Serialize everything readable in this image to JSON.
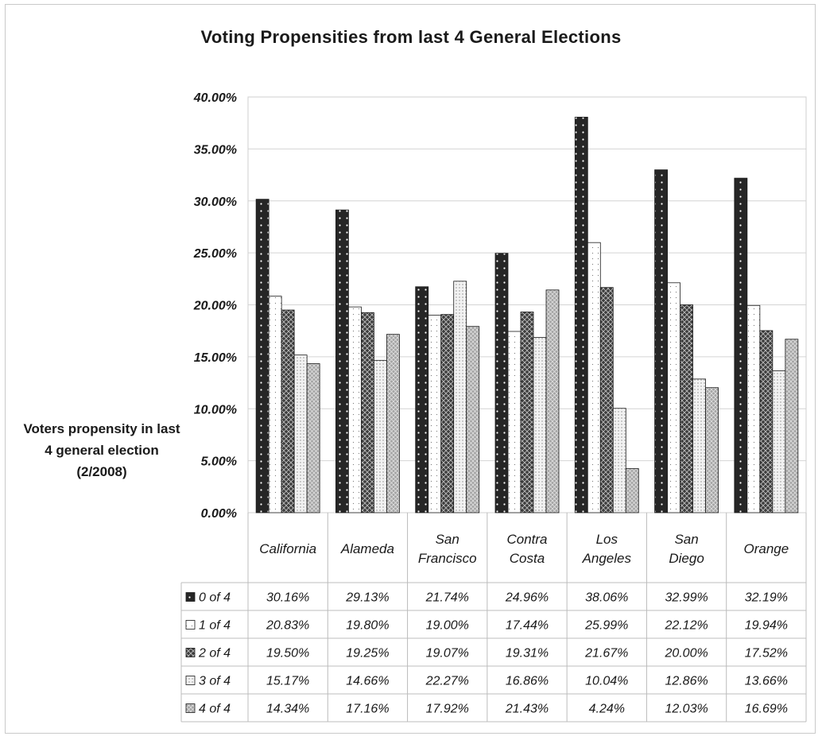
{
  "chart_data": {
    "type": "bar",
    "title": "Voting Propensities from last 4 General Elections",
    "ylabel": "Voters propensity in last 4 general election (2/2008)",
    "xlabel": "",
    "ylim": [
      0,
      40
    ],
    "yticks": [
      "0.00%",
      "5.00%",
      "10.00%",
      "15.00%",
      "20.00%",
      "25.00%",
      "30.00%",
      "35.00%",
      "40.00%"
    ],
    "grid": true,
    "legend": "data-table",
    "categories": [
      [
        "California"
      ],
      [
        "Alameda"
      ],
      [
        "San",
        "Francisco"
      ],
      [
        "Contra",
        "Costa"
      ],
      [
        "Los",
        "Angeles"
      ],
      [
        "San",
        "Diego"
      ],
      [
        "Orange"
      ]
    ],
    "series": [
      {
        "name": "0 of 4",
        "values": [
          30.16,
          29.13,
          21.74,
          24.96,
          38.06,
          32.99,
          32.19
        ],
        "labels": [
          "30.16%",
          "29.13%",
          "21.74%",
          "24.96%",
          "38.06%",
          "32.99%",
          "32.19%"
        ],
        "color": "#2b2b2b"
      },
      {
        "name": "1 of 4",
        "values": [
          20.83,
          19.8,
          19.0,
          17.44,
          25.99,
          22.12,
          19.94
        ],
        "labels": [
          "20.83%",
          "19.80%",
          "19.00%",
          "17.44%",
          "25.99%",
          "22.12%",
          "19.94%"
        ],
        "color": "#ffffff"
      },
      {
        "name": "2 of 4",
        "values": [
          19.5,
          19.25,
          19.07,
          19.31,
          21.67,
          20.0,
          17.52
        ],
        "labels": [
          "19.50%",
          "19.25%",
          "19.07%",
          "19.31%",
          "21.67%",
          "20.00%",
          "17.52%"
        ],
        "color": "#4a4a4a"
      },
      {
        "name": "3 of 4",
        "values": [
          15.17,
          14.66,
          22.27,
          16.86,
          10.04,
          12.86,
          13.66
        ],
        "labels": [
          "15.17%",
          "14.66%",
          "22.27%",
          "16.86%",
          "10.04%",
          "12.86%",
          "13.66%"
        ],
        "color": "#e6e6e6"
      },
      {
        "name": "4 of 4",
        "values": [
          14.34,
          17.16,
          17.92,
          21.43,
          4.24,
          12.03,
          16.69
        ],
        "labels": [
          "14.34%",
          "17.16%",
          "17.92%",
          "21.43%",
          "4.24%",
          "12.03%",
          "16.69%"
        ],
        "color": "#a8a8a8"
      }
    ]
  }
}
